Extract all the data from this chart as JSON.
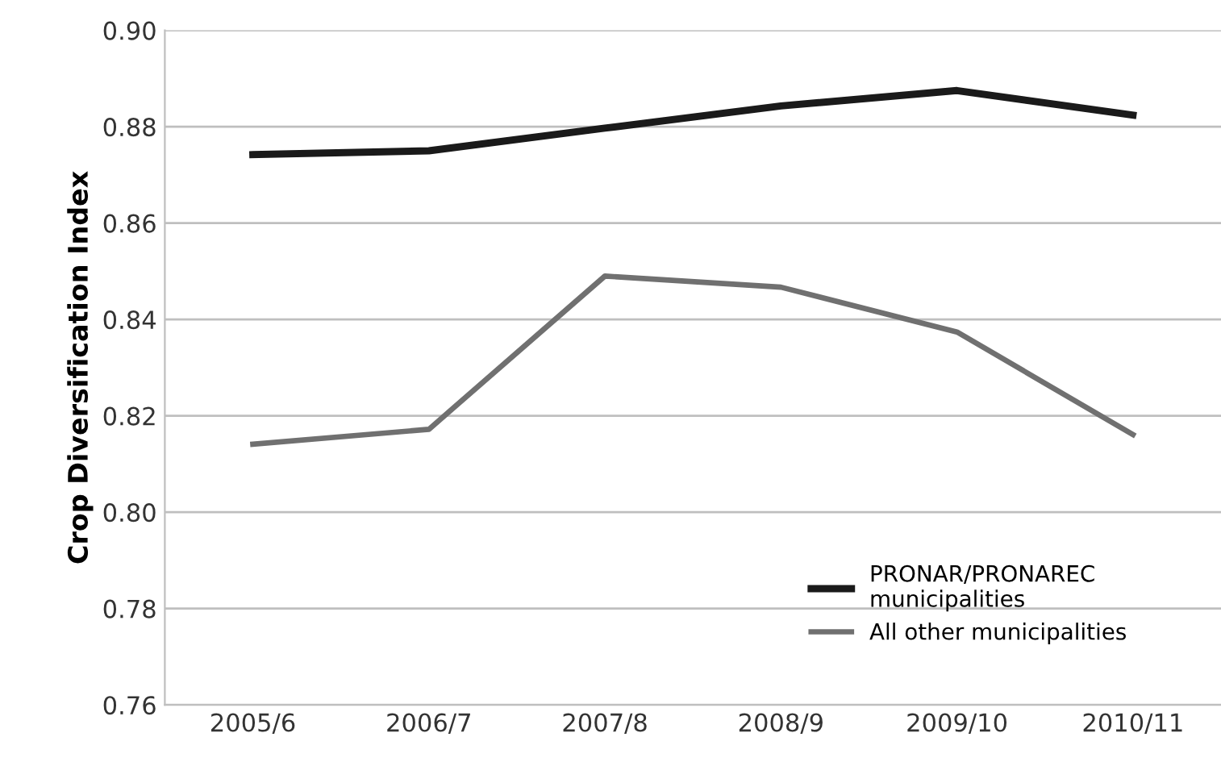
{
  "chart_data": {
    "type": "line",
    "ylabel": "Crop Diversification Index",
    "categories": [
      "2005/6",
      "2006/7",
      "2007/8",
      "2008/9",
      "2009/10",
      "2010/11"
    ],
    "series": [
      {
        "name": "PRONAR/PRONAREC\nmunicipalities",
        "color": "#1a1a1a",
        "values": [
          0.8742,
          0.875,
          0.8797,
          0.8843,
          0.8875,
          0.8824
        ]
      },
      {
        "name": "All other municipalities",
        "color": "#707070",
        "values": [
          0.8141,
          0.8172,
          0.849,
          0.8467,
          0.8374,
          0.8161
        ]
      }
    ],
    "ylim": [
      0.76,
      0.9
    ],
    "yticks": [
      {
        "value": 0.76,
        "label": "0.76"
      },
      {
        "value": 0.78,
        "label": "0.78"
      },
      {
        "value": 0.8,
        "label": "0.80"
      },
      {
        "value": 0.82,
        "label": "0.82"
      },
      {
        "value": 0.84,
        "label": "0.84"
      },
      {
        "value": 0.86,
        "label": "0.86"
      },
      {
        "value": 0.88,
        "label": "0.88"
      },
      {
        "value": 0.9,
        "label": "0.90"
      }
    ],
    "grid": "y",
    "legend": "lower right",
    "marker": "none",
    "line_style": "solid"
  }
}
